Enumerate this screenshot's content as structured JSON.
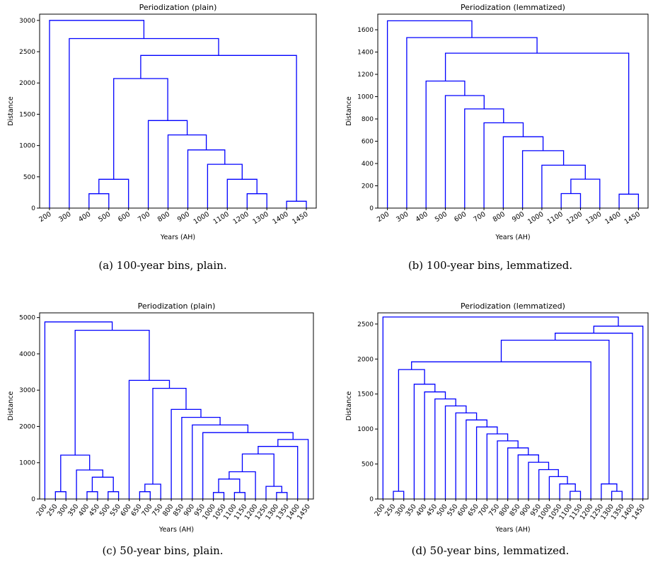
{
  "chart_data": [
    {
      "type": "dendrogram",
      "title": "Periodization (plain)",
      "xlabel": "Years (AH)",
      "ylabel": "Distance",
      "ylim": [
        0,
        3100
      ],
      "yticks": [
        0,
        500,
        1000,
        1500,
        2000,
        2500,
        3000
      ],
      "leaves": [
        "200",
        "300",
        "400",
        "500",
        "600",
        "700",
        "800",
        "900",
        "1000",
        "1100",
        "1200",
        "1300",
        "1400",
        "1450"
      ],
      "merges": [
        {
          "a": "400",
          "b": "500",
          "height": 230
        },
        {
          "a": "1200",
          "b": "1300",
          "height": 230
        },
        {
          "a": "1400",
          "b": "1450",
          "height": 110
        },
        {
          "a": "1100",
          "b": "1200",
          "height": 460
        },
        {
          "a": "1000",
          "b": "1100",
          "height": 700
        },
        {
          "a": "900",
          "b": "1000",
          "height": 930
        },
        {
          "a": "800",
          "b": "900",
          "height": 1170
        },
        {
          "a": "700",
          "b": "800",
          "height": 1400
        },
        {
          "a": "400",
          "b": "600",
          "height": 460
        },
        {
          "a": "600",
          "b": "700",
          "height": 2070
        },
        {
          "a": "600",
          "b": "1400",
          "height": 2440
        },
        {
          "a": "300",
          "b": "600",
          "height": 2710
        },
        {
          "a": "200",
          "b": "300",
          "height": 3000
        }
      ],
      "caption": "(a) 100-year bins, plain."
    },
    {
      "type": "dendrogram",
      "title": "Periodization (lemmatized)",
      "xlabel": "Years (AH)",
      "ylabel": "Distance",
      "ylim": [
        0,
        1740
      ],
      "yticks": [
        0,
        200,
        400,
        600,
        800,
        1000,
        1200,
        1400,
        1600
      ],
      "leaves": [
        "200",
        "300",
        "400",
        "500",
        "600",
        "700",
        "800",
        "900",
        "1000",
        "1100",
        "1200",
        "1300",
        "1400",
        "1450"
      ],
      "merges": [
        {
          "a": "1100",
          "b": "1200",
          "height": 130
        },
        {
          "a": "1400",
          "b": "1450",
          "height": 125
        },
        {
          "a": "1100",
          "b": "1300",
          "height": 260
        },
        {
          "a": "1000",
          "b": "1100",
          "height": 385
        },
        {
          "a": "900",
          "b": "1000",
          "height": 515
        },
        {
          "a": "800",
          "b": "900",
          "height": 640
        },
        {
          "a": "700",
          "b": "800",
          "height": 765
        },
        {
          "a": "600",
          "b": "700",
          "height": 890
        },
        {
          "a": "500",
          "b": "600",
          "height": 1010
        },
        {
          "a": "400",
          "b": "500",
          "height": 1140
        },
        {
          "a": "400",
          "b": "1400",
          "height": 1390
        },
        {
          "a": "300",
          "b": "400",
          "height": 1530
        },
        {
          "a": "200",
          "b": "300",
          "height": 1680
        }
      ],
      "caption": "(b) 100-year bins, lemmatized."
    },
    {
      "type": "dendrogram",
      "title": "Periodization (plain)",
      "xlabel": "Years (AH)",
      "ylabel": "Distance",
      "ylim": [
        0,
        5130
      ],
      "yticks": [
        0,
        1000,
        2000,
        3000,
        4000,
        5000
      ],
      "leaves": [
        "200",
        "250",
        "300",
        "350",
        "400",
        "450",
        "500",
        "550",
        "600",
        "650",
        "700",
        "750",
        "800",
        "850",
        "900",
        "950",
        "1000",
        "1050",
        "1100",
        "1150",
        "1200",
        "1250",
        "1300",
        "1350",
        "1400",
        "1450"
      ],
      "merges": [
        {
          "a": "250",
          "b": "300",
          "height": 200
        },
        {
          "a": "400",
          "b": "450",
          "height": 200
        },
        {
          "a": "500",
          "b": "550",
          "height": 200
        },
        {
          "a": "650",
          "b": "700",
          "height": 200
        },
        {
          "a": "1000",
          "b": "1050",
          "height": 180
        },
        {
          "a": "1100",
          "b": "1150",
          "height": 180
        },
        {
          "a": "1300",
          "b": "1350",
          "height": 180
        },
        {
          "a": "1250",
          "b": "1300",
          "height": 350
        },
        {
          "a": "700",
          "b": "750",
          "height": 410
        },
        {
          "a": "1050",
          "b": "1100",
          "height": 550
        },
        {
          "a": "450",
          "b": "500",
          "height": 600
        },
        {
          "a": "1050",
          "b": "1200",
          "height": 750
        },
        {
          "a": "350",
          "b": "450",
          "height": 800
        },
        {
          "a": "250",
          "b": "350",
          "height": 1210
        },
        {
          "a": "1100",
          "b": "1250",
          "height": 1240
        },
        {
          "a": "1200",
          "b": "1400",
          "height": 1450
        },
        {
          "a": "1300",
          "b": "1450",
          "height": 1640
        },
        {
          "a": "950",
          "b": "1300",
          "height": 1830
        },
        {
          "a": "900",
          "b": "950",
          "height": 2040
        },
        {
          "a": "850",
          "b": "900",
          "height": 2250
        },
        {
          "a": "800",
          "b": "850",
          "height": 2470
        },
        {
          "a": "700",
          "b": "800",
          "height": 3050
        },
        {
          "a": "600",
          "b": "700",
          "height": 3270
        },
        {
          "a": "300",
          "b": "600",
          "height": 4650
        },
        {
          "a": "200",
          "b": "300",
          "height": 4880
        }
      ],
      "caption": "(c) 50-year bins, plain."
    },
    {
      "type": "dendrogram",
      "title": "Periodization (lemmatized)",
      "xlabel": "Years (AH)",
      "ylabel": "Distance",
      "ylim": [
        0,
        2660
      ],
      "yticks": [
        0,
        500,
        1000,
        1500,
        2000,
        2500
      ],
      "leaves": [
        "200",
        "250",
        "300",
        "350",
        "400",
        "450",
        "500",
        "550",
        "600",
        "650",
        "700",
        "750",
        "800",
        "850",
        "900",
        "950",
        "1000",
        "1050",
        "1100",
        "1150",
        "1200",
        "1250",
        "1300",
        "1350",
        "1400",
        "1450"
      ],
      "merges": [
        {
          "a": "250",
          "b": "300",
          "height": 110
        },
        {
          "a": "1100",
          "b": "1150",
          "height": 110
        },
        {
          "a": "1300",
          "b": "1350",
          "height": 110
        },
        {
          "a": "1050",
          "b": "1100",
          "height": 215
        },
        {
          "a": "1250",
          "b": "1300",
          "height": 215
        },
        {
          "a": "1000",
          "b": "1050",
          "height": 320
        },
        {
          "a": "950",
          "b": "1000",
          "height": 420
        },
        {
          "a": "900",
          "b": "950",
          "height": 525
        },
        {
          "a": "850",
          "b": "900",
          "height": 630
        },
        {
          "a": "800",
          "b": "850",
          "height": 730
        },
        {
          "a": "750",
          "b": "800",
          "height": 830
        },
        {
          "a": "700",
          "b": "750",
          "height": 930
        },
        {
          "a": "650",
          "b": "700",
          "height": 1030
        },
        {
          "a": "600",
          "b": "650",
          "height": 1130
        },
        {
          "a": "550",
          "b": "600",
          "height": 1230
        },
        {
          "a": "500",
          "b": "550",
          "height": 1330
        },
        {
          "a": "450",
          "b": "500",
          "height": 1430
        },
        {
          "a": "400",
          "b": "450",
          "height": 1530
        },
        {
          "a": "350",
          "b": "400",
          "height": 1640
        },
        {
          "a": "250",
          "b": "350",
          "height": 1850
        },
        {
          "a": "300",
          "b": "1200",
          "height": 1960
        },
        {
          "a": "1200",
          "b": "1250",
          "height": 2270
        },
        {
          "a": "1250",
          "b": "1400",
          "height": 2370
        },
        {
          "a": "1400",
          "b": "1450",
          "height": 2470
        },
        {
          "a": "200",
          "b": "1450",
          "height": 2600
        }
      ],
      "caption": "(d) 50-year bins, lemmatized."
    }
  ],
  "colors": {
    "link": "#0000ff",
    "axis": "#000000"
  }
}
